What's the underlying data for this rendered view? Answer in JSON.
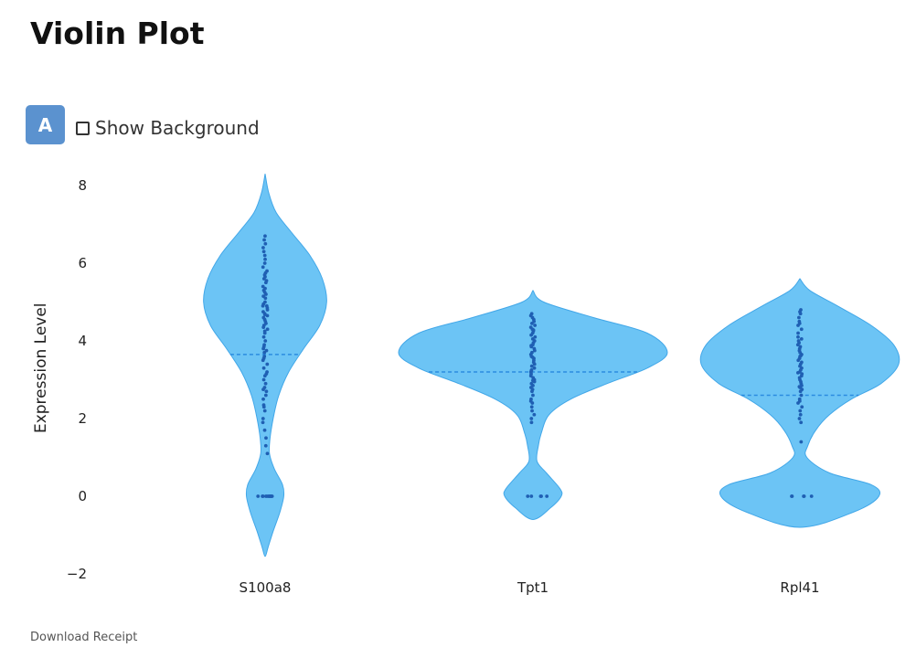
{
  "page": {
    "title": "Violin Plot",
    "mode_button": "A",
    "show_background_label": "Show Background",
    "show_background_checked": false,
    "download_label": "Download Receipt"
  },
  "colors": {
    "violin_fill": "#6cc4f5",
    "violin_stroke": "#42a7e8",
    "points": "#1f5fb3",
    "median_line": "#2b8ce0",
    "button": "#5b92cf"
  },
  "chart_data": {
    "type": "violin",
    "ylabel": "Expression Level",
    "ylim": [
      -2.4,
      8.4
    ],
    "yticks": [
      -2,
      0,
      2,
      4,
      6,
      8
    ],
    "categories": [
      "S100a8",
      "Tpt1",
      "Rpl41"
    ],
    "medians": [
      3.65,
      3.2,
      2.6
    ],
    "violins": [
      {
        "name": "S100a8",
        "profile": [
          [
            8.3,
            0.02
          ],
          [
            7.8,
            0.06
          ],
          [
            7.3,
            0.18
          ],
          [
            6.8,
            0.42
          ],
          [
            6.2,
            0.72
          ],
          [
            5.6,
            0.92
          ],
          [
            5.0,
            0.99
          ],
          [
            4.4,
            0.88
          ],
          [
            3.8,
            0.62
          ],
          [
            3.2,
            0.38
          ],
          [
            2.6,
            0.22
          ],
          [
            2.0,
            0.13
          ],
          [
            1.5,
            0.08
          ],
          [
            1.1,
            0.07
          ],
          [
            0.7,
            0.15
          ],
          [
            0.3,
            0.28
          ],
          [
            0.0,
            0.3
          ],
          [
            -0.4,
            0.24
          ],
          [
            -0.9,
            0.13
          ],
          [
            -1.3,
            0.05
          ],
          [
            -1.55,
            0.02
          ]
        ],
        "jitter": 0.15,
        "points": [
          6.7,
          6.5,
          6.4,
          6.3,
          6.2,
          6.1,
          5.9,
          5.8,
          5.75,
          5.7,
          5.6,
          5.55,
          5.5,
          5.4,
          5.35,
          5.3,
          5.2,
          5.15,
          5.1,
          5.0,
          4.95,
          4.9,
          4.85,
          4.8,
          4.75,
          4.7,
          4.65,
          4.6,
          4.55,
          4.5,
          4.45,
          4.4,
          4.35,
          4.3,
          4.2,
          4.1,
          4.0,
          3.9,
          3.8,
          3.75,
          3.7,
          3.6,
          3.5,
          3.4,
          3.3,
          3.2,
          3.1,
          3.0,
          2.9,
          2.8,
          2.7,
          2.6,
          2.5,
          2.35,
          2.2,
          2.0,
          1.9,
          1.7,
          1.5,
          1.3,
          1.1,
          6.6,
          6.0,
          5.65,
          5.25,
          4.9,
          4.68,
          4.25,
          3.85,
          3.55,
          3.15,
          2.75,
          2.3,
          0,
          0,
          0,
          0,
          0,
          0,
          0,
          0,
          0,
          0,
          0
        ]
      },
      {
        "name": "Tpt1",
        "profile": [
          [
            5.3,
            0.02
          ],
          [
            5.0,
            0.08
          ],
          [
            4.6,
            0.45
          ],
          [
            4.2,
            0.85
          ],
          [
            3.7,
            1.0
          ],
          [
            3.3,
            0.85
          ],
          [
            2.9,
            0.55
          ],
          [
            2.5,
            0.28
          ],
          [
            2.1,
            0.12
          ],
          [
            1.6,
            0.06
          ],
          [
            1.3,
            0.04
          ],
          [
            0.9,
            0.03
          ],
          [
            0.6,
            0.1
          ],
          [
            0.2,
            0.2
          ],
          [
            0.0,
            0.21
          ],
          [
            -0.3,
            0.13
          ],
          [
            -0.6,
            0.02
          ]
        ],
        "jitter": 0.13,
        "points": [
          4.7,
          4.6,
          4.55,
          4.5,
          4.45,
          4.4,
          4.35,
          4.3,
          4.25,
          4.2,
          4.15,
          4.1,
          4.05,
          4.0,
          3.95,
          3.9,
          3.85,
          3.8,
          3.75,
          3.7,
          3.65,
          3.6,
          3.55,
          3.5,
          3.45,
          3.4,
          3.35,
          3.3,
          3.25,
          3.2,
          3.15,
          3.1,
          3.05,
          3.0,
          2.95,
          2.9,
          2.85,
          2.8,
          2.7,
          2.6,
          2.5,
          2.4,
          2.3,
          2.2,
          2.1,
          2.0,
          1.9,
          4.65,
          4.28,
          3.88,
          3.58,
          3.22,
          2.98,
          2.75,
          2.45,
          0,
          0,
          0,
          0,
          0
        ]
      },
      {
        "name": "Rpl41",
        "profile": [
          [
            5.6,
            0.02
          ],
          [
            5.3,
            0.1
          ],
          [
            4.9,
            0.38
          ],
          [
            4.4,
            0.72
          ],
          [
            3.9,
            0.95
          ],
          [
            3.4,
            1.0
          ],
          [
            2.9,
            0.82
          ],
          [
            2.5,
            0.52
          ],
          [
            2.1,
            0.3
          ],
          [
            1.7,
            0.16
          ],
          [
            1.3,
            0.08
          ],
          [
            1.0,
            0.07
          ],
          [
            0.6,
            0.3
          ],
          [
            0.3,
            0.72
          ],
          [
            0.0,
            0.8
          ],
          [
            -0.4,
            0.55
          ],
          [
            -0.8,
            0.05
          ]
        ],
        "jitter": 0.13,
        "points": [
          4.8,
          4.7,
          4.6,
          4.5,
          4.4,
          4.3,
          4.2,
          4.1,
          4.0,
          3.95,
          3.9,
          3.85,
          3.8,
          3.75,
          3.7,
          3.65,
          3.6,
          3.55,
          3.5,
          3.45,
          3.4,
          3.35,
          3.3,
          3.25,
          3.2,
          3.15,
          3.1,
          3.05,
          3.0,
          2.95,
          2.9,
          2.85,
          2.8,
          2.75,
          2.7,
          2.6,
          2.5,
          2.4,
          2.3,
          2.2,
          2.1,
          2.0,
          1.9,
          1.4,
          4.75,
          4.45,
          4.05,
          3.62,
          3.18,
          2.82,
          2.45,
          0,
          0,
          0,
          0,
          0
        ]
      }
    ]
  }
}
